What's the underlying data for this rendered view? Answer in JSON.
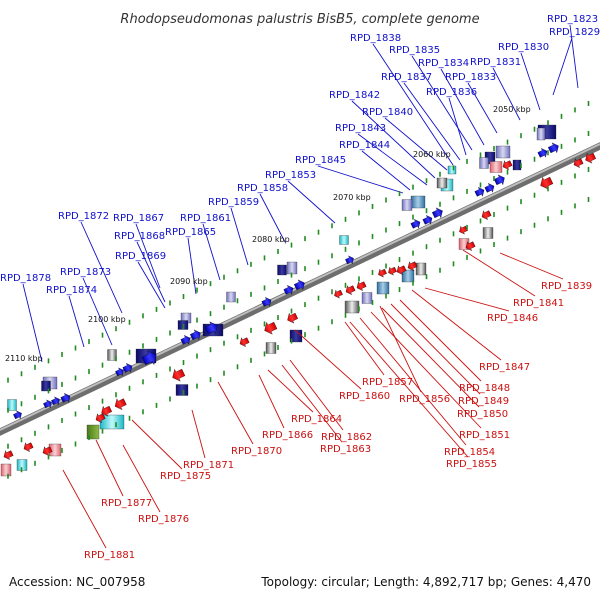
{
  "title": "Rhodopseudomonas palustris BisB5, complete genome",
  "footer": {
    "accession": "Accession: NC_007958",
    "stats": "Topology: circular; Length: 4,892,717 bp; Genes: 4,470"
  },
  "colors": {
    "top_strand_labels": "#1010cc",
    "bottom_strand_labels": "#cc1010",
    "backbone": "#888888",
    "tick": "#228b22"
  },
  "scale_ticks": [
    "2050 kbp",
    "2060 kbp",
    "2070 kbp",
    "2080 kbp",
    "2090 kbp",
    "2100 kbp",
    "2110 kbp"
  ],
  "top_labels": [
    "RPD_1823",
    "RPD_1829",
    "RPD_1830",
    "RPD_1831",
    "RPD_1833",
    "RPD_1834",
    "RPD_1835",
    "RPD_1836",
    "RPD_1837",
    "RPD_1838",
    "RPD_1840",
    "RPD_1842",
    "RPD_1843",
    "RPD_1844",
    "RPD_1845",
    "RPD_1853",
    "RPD_1858",
    "RPD_1859",
    "RPD_1861",
    "RPD_1865",
    "RPD_1867",
    "RPD_1868",
    "RPD_1869",
    "RPD_1872",
    "RPD_1873",
    "RPD_1874",
    "RPD_1878"
  ],
  "bottom_labels": [
    "RPD_1839",
    "RPD_1841",
    "RPD_1846",
    "RPD_1847",
    "RPD_1848",
    "RPD_1849",
    "RPD_1850",
    "RPD_1851",
    "RPD_1854",
    "RPD_1855",
    "RPD_1856",
    "RPD_1857",
    "RPD_1860",
    "RPD_1862",
    "RPD_1863",
    "RPD_1864",
    "RPD_1866",
    "RPD_1870",
    "RPD_1871",
    "RPD_1875",
    "RPD_1876",
    "RPD_1877",
    "RPD_1881"
  ]
}
